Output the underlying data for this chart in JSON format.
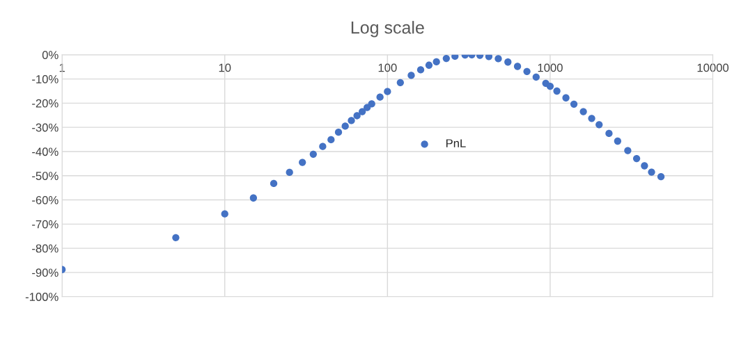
{
  "chart_data": {
    "type": "scatter",
    "title": "Log scale",
    "log": "x",
    "grid": true,
    "legend": "center",
    "marker": "circle",
    "xlim": [
      1,
      10000
    ],
    "xticks": [
      1,
      10,
      100,
      1000,
      10000
    ],
    "ylim": [
      -100,
      0
    ],
    "yticks": [
      {
        "value": 0,
        "label": "0%"
      },
      {
        "value": -10,
        "label": "-10%"
      },
      {
        "value": -20,
        "label": "-20%"
      },
      {
        "value": -30,
        "label": "-30%"
      },
      {
        "value": -40,
        "label": "-40%"
      },
      {
        "value": -50,
        "label": "-50%"
      },
      {
        "value": -60,
        "label": "-60%"
      },
      {
        "value": -70,
        "label": "-70%"
      },
      {
        "value": -80,
        "label": "-80%"
      },
      {
        "value": -90,
        "label": "-90%"
      },
      {
        "value": -100,
        "label": "-100%"
      }
    ],
    "series": [
      {
        "name": "PnL",
        "color": "#4472c4",
        "x": [
          1,
          5,
          10,
          15,
          20,
          25,
          30,
          35,
          40,
          45,
          50,
          55,
          60,
          65,
          70,
          75,
          80,
          90,
          100,
          120,
          140,
          160,
          180,
          200,
          230,
          260,
          300,
          330,
          370,
          420,
          480,
          550,
          630,
          720,
          820,
          940,
          1000,
          1100,
          1250,
          1400,
          1600,
          1800,
          2000,
          2300,
          2600,
          3000,
          3400,
          3800,
          4200,
          4800
        ],
        "values": [
          -88.8,
          -75.6,
          -65.8,
          -59.2,
          -53.2,
          -48.6,
          -44.5,
          -41.1,
          -37.9,
          -35.1,
          -32.0,
          -29.5,
          -27.2,
          -25.2,
          -23.5,
          -21.8,
          -20.3,
          -17.5,
          -15.2,
          -11.5,
          -8.5,
          -6.2,
          -4.3,
          -2.9,
          -1.5,
          -0.6,
          -0.1,
          0,
          -0.2,
          -0.7,
          -1.6,
          -3.0,
          -4.8,
          -6.9,
          -9.2,
          -11.8,
          -13.0,
          -15.0,
          -17.8,
          -20.4,
          -23.5,
          -26.3,
          -28.9,
          -32.5,
          -35.7,
          -39.6,
          -42.9,
          -45.9,
          -48.5,
          -50.4
        ]
      }
    ]
  }
}
